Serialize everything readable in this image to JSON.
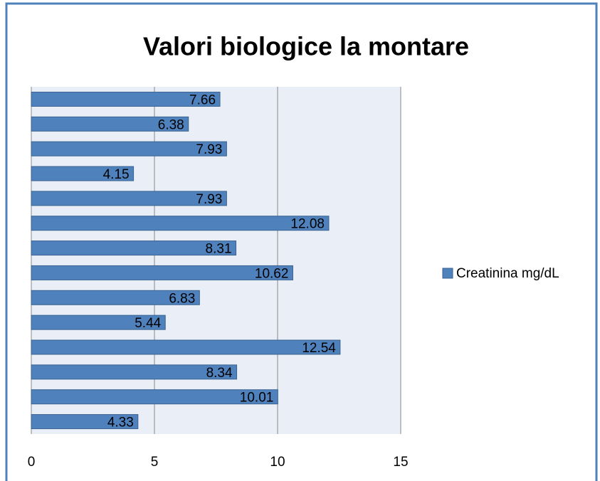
{
  "chart_data": {
    "type": "bar",
    "orientation": "horizontal",
    "title": "Valori biologice la montare",
    "categories": [
      null,
      null,
      null,
      null,
      null,
      null,
      null,
      null,
      null,
      null,
      null,
      null,
      null,
      null
    ],
    "series": [
      {
        "name": "Creatinina mg/dL",
        "color": "#4f81bd",
        "values": [
          7.66,
          6.38,
          7.93,
          4.15,
          7.93,
          12.08,
          8.31,
          10.62,
          6.83,
          5.44,
          12.54,
          8.34,
          10.01,
          4.33
        ]
      }
    ],
    "xlim": [
      0,
      15
    ],
    "xticks": [
      0,
      5,
      10,
      15
    ],
    "grid": true,
    "legend": "right"
  }
}
